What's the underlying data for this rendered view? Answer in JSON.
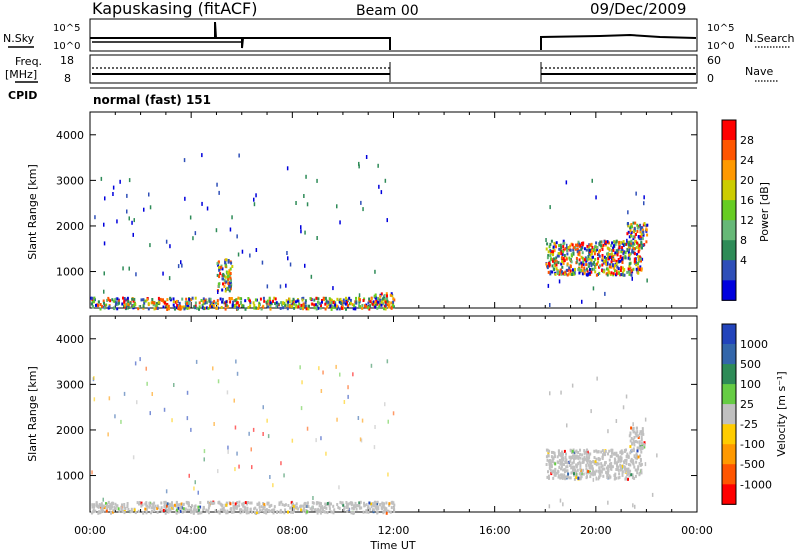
{
  "header": {
    "station": "Kapuskasing (fitACF)",
    "beam": "Beam 00",
    "date": "09/Dec/2009"
  },
  "status_panels": {
    "nsky_label": "N.Sky",
    "nsky_ticks": [
      "10^5",
      "10^0"
    ],
    "nsearch_label": "N.Search",
    "nsearch_ticks": [
      "10^5",
      "10^0"
    ],
    "freq_label": "Freq.",
    "freq_unit": "[MHz]",
    "freq_ticks": [
      "18",
      "8"
    ],
    "nave_label": "Nave",
    "nave_ticks": [
      "60",
      "0"
    ],
    "cpid_label": "CPID",
    "cpid_value": "normal (fast) 151"
  },
  "colors": {
    "power_scale": [
      "#0000dd",
      "#2f4fb8",
      "#2e8b57",
      "#66b877",
      "#66cc22",
      "#cccc00",
      "#ff9900",
      "#ff5500",
      "#ff0000"
    ],
    "velocity_scale": [
      "#2244bb",
      "#3366aa",
      "#2e8b57",
      "#66cc44",
      "#c0c0c0",
      "#ffcc00",
      "#ff9900",
      "#ff5500",
      "#ff0000"
    ]
  },
  "chart_data": [
    {
      "type": "heatmap",
      "name": "power",
      "ylabel": "Slant Range [km]",
      "x_ticks": [
        "00:00",
        "04:00",
        "08:00",
        "12:00",
        "16:00",
        "20:00",
        "00:00"
      ],
      "y_ticks": [
        "1000",
        "2000",
        "3000",
        "4000"
      ],
      "xlim": [
        0,
        24
      ],
      "ylim": [
        200,
        4500
      ],
      "colorbar_label": "Power [dB]",
      "colorbar_ticks": [
        "28",
        "24",
        "20",
        "16",
        "12",
        "8",
        "4"
      ],
      "regions": [
        {
          "t_start": 0.0,
          "t_end": 12.0,
          "range_min": 200,
          "range_max": 450,
          "level": "mixed"
        },
        {
          "t_start": 11.2,
          "t_end": 12.0,
          "range_min": 350,
          "range_max": 550,
          "level": "12-20"
        },
        {
          "t_start": 5.0,
          "t_end": 5.6,
          "range_min": 600,
          "range_max": 1300,
          "level": "4-12"
        },
        {
          "t_start": 18.0,
          "t_end": 21.8,
          "range_min": 950,
          "range_max": 1700,
          "level": "8-28"
        },
        {
          "t_start": 21.2,
          "t_end": 22.0,
          "range_min": 1600,
          "range_max": 2100,
          "level": "4-8"
        }
      ]
    },
    {
      "type": "heatmap",
      "name": "velocity",
      "ylabel": "Slant Range [km]",
      "xlabel": "Time UT",
      "x_ticks": [
        "00:00",
        "04:00",
        "08:00",
        "12:00",
        "16:00",
        "20:00",
        "00:00"
      ],
      "y_ticks": [
        "1000",
        "2000",
        "3000",
        "4000"
      ],
      "xlim": [
        0,
        24
      ],
      "ylim": [
        200,
        4500
      ],
      "colorbar_label": "Velocity [m s⁻¹]",
      "colorbar_ticks": [
        "1000",
        "500",
        "100",
        "25",
        "-25",
        "-100",
        "-500",
        "-1000"
      ],
      "regions": [
        {
          "t_start": 0.0,
          "t_end": 12.0,
          "range_min": 200,
          "range_max": 450,
          "level": "-25 to 25"
        },
        {
          "t_start": 18.0,
          "t_end": 21.8,
          "range_min": 950,
          "range_max": 1600,
          "level": "-25 to 25"
        },
        {
          "t_start": 21.3,
          "t_end": 21.9,
          "range_min": 1600,
          "range_max": 2100,
          "level": "-25 to 25"
        }
      ]
    }
  ]
}
